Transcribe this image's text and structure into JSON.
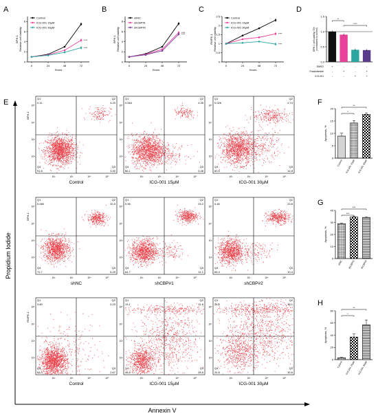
{
  "figure": {
    "y_axis_label": "Propidium Iodide",
    "x_axis_label": "Annexin V"
  },
  "chart_data": [
    {
      "panel": "A",
      "type": "line",
      "ylabel": "BPH-1 Relative cell viability",
      "xlabel": "Hours",
      "x": [
        0,
        24,
        48,
        72
      ],
      "ylim": [
        0,
        9
      ],
      "yticks": [
        0,
        2,
        4,
        6,
        8
      ],
      "series": [
        {
          "name": "Control",
          "color": "#000000",
          "values": [
            1.0,
            1.5,
            3.0,
            7.5
          ]
        },
        {
          "name": "ICG-001 15µM",
          "color": "#e8419a",
          "values": [
            1.0,
            1.4,
            2.3,
            4.3
          ]
        },
        {
          "name": "ICG-001 30µM",
          "color": "#2ba6a0",
          "values": [
            1.0,
            1.3,
            1.9,
            2.8
          ]
        }
      ],
      "annotations": [
        "****",
        "****"
      ]
    },
    {
      "panel": "B",
      "type": "line",
      "ylabel": "BPH-1 Relative cell viability",
      "xlabel": "Hours",
      "x": [
        0,
        24,
        48,
        72
      ],
      "ylim": [
        0,
        9
      ],
      "yticks": [
        0,
        2,
        4,
        6,
        8
      ],
      "series": [
        {
          "name": "shNC",
          "color": "#000000",
          "values": [
            1.0,
            1.6,
            3.0,
            7.6
          ]
        },
        {
          "name": "shCBP#1",
          "color": "#e8419a",
          "values": [
            1.0,
            1.5,
            2.5,
            5.8
          ]
        },
        {
          "name": "shCBP#2",
          "color": "#7b3fa0",
          "values": [
            1.0,
            1.4,
            2.2,
            5.5
          ]
        }
      ],
      "annotations": [
        "****",
        "****"
      ]
    },
    {
      "panel": "C",
      "type": "line",
      "ylabel": "RWPE-1 Relative cell viability",
      "xlabel": "Hours",
      "x": [
        0,
        24,
        48,
        72
      ],
      "ylim": [
        0,
        2.5
      ],
      "yticks": [
        0,
        0.5,
        1.0,
        1.5,
        2.0,
        2.5
      ],
      "series": [
        {
          "name": "Control",
          "color": "#000000",
          "values": [
            1.0,
            1.45,
            1.85,
            2.3
          ]
        },
        {
          "name": "ICG-001 15µM",
          "color": "#e8419a",
          "values": [
            1.0,
            1.25,
            1.35,
            1.55
          ]
        },
        {
          "name": "ICG-001 30µM",
          "color": "#2ba6a0",
          "values": [
            1.0,
            1.05,
            1.12,
            0.98
          ]
        }
      ],
      "annotations": [
        "****",
        "****"
      ]
    },
    {
      "panel": "D",
      "type": "bar",
      "ylabel": "BPH-1 cell viability, 72h (normalized to control)",
      "ylim": [
        0,
        1.5
      ],
      "yticks": [
        0,
        0.5,
        1.0,
        1.5
      ],
      "row_labels": [
        "DMSO",
        "Enzalutamide",
        "ICG-001"
      ],
      "conditions": [
        [
          "+",
          "-",
          "-"
        ],
        [
          "-",
          "+",
          "-"
        ],
        [
          "-",
          "-",
          "+"
        ],
        [
          "-",
          "+",
          "+"
        ]
      ],
      "values": [
        1.0,
        0.9,
        0.4,
        0.39
      ],
      "colors": [
        "#111111",
        "#e8419a",
        "#2ba6a0",
        "#5a3d8a"
      ],
      "annotations": [
        "**",
        "****"
      ]
    },
    {
      "panel": "E",
      "type": "scatter",
      "xlabel": "Annexin V",
      "ylabel": "Propidium Iodide",
      "x_ticks": [
        "10²",
        "10³",
        "10⁴",
        "10⁵"
      ],
      "y_ticks": [
        "10²",
        "10³",
        "10⁴",
        "10⁵"
      ],
      "quadrant_labels": [
        "Q1",
        "Q2",
        "Q3",
        "Q4"
      ],
      "plots": [
        {
          "row": "BPH-1",
          "caption": "Control",
          "q1": "0.11",
          "q2": "4.20",
          "q3": "3.92",
          "q4": "91.8"
        },
        {
          "row": "BPH-1",
          "caption": "ICG-001 15µM",
          "q1": "0.064",
          "q2": "4.35",
          "q3": "9.48",
          "q4": "86.1"
        },
        {
          "row": "BPH-1",
          "caption": "ICG-001 30µM",
          "q1": "0.026",
          "q2": "2.74",
          "q3": "14.8",
          "q4": "82.5"
        },
        {
          "row": "BPH-1",
          "caption": "shNC",
          "q1": "0.080",
          "q2": "20.9",
          "q3": "6.29",
          "q4": "72.7"
        },
        {
          "row": "BPH-1",
          "caption": "shCBP#1",
          "q1": "0.96",
          "q2": "23.2",
          "q3": "11.1",
          "q4": "64.7"
        },
        {
          "row": "BPH-1",
          "caption": "shCBP#2",
          "q1": "0.46",
          "q2": "23.8",
          "q3": "10.4",
          "q4": "65.3"
        },
        {
          "row": "RWPE-1",
          "caption": "Control",
          "q1": "3.80",
          "q2": "0.23",
          "q3": "2.67",
          "q4": "93.3"
        },
        {
          "row": "RWPE-1",
          "caption": "ICG-001 15µM",
          "q1": "13.1",
          "q2": "11.6",
          "q3": "28.5",
          "q4": "46.8"
        },
        {
          "row": "RWPE-1",
          "caption": "ICG-001 30µM",
          "q1": "26.5",
          "q2": "18.1",
          "q3": "30.6",
          "q4": "24.8"
        }
      ]
    },
    {
      "panel": "F",
      "type": "bar",
      "ylabel": "Apoptosis, %",
      "ylim": [
        0,
        20
      ],
      "yticks": [
        0,
        5,
        10,
        15,
        20
      ],
      "categories": [
        "Control",
        "ICG-001 15µM",
        "ICG-001 30µM"
      ],
      "values": [
        8.9,
        14.2,
        17.7
      ],
      "errors": [
        1.2,
        1.0,
        0.6
      ],
      "patterns": [
        "dots",
        "grid",
        "checker"
      ],
      "annotations": [
        "**",
        "*"
      ]
    },
    {
      "panel": "G",
      "type": "bar",
      "ylabel": "Apoptosis, %",
      "ylim": [
        0,
        40
      ],
      "yticks": [
        0,
        10,
        20,
        30,
        40
      ],
      "categories": [
        "shNC",
        "shCBP#1",
        "shCBP#2"
      ],
      "values": [
        29.0,
        34.5,
        34.2
      ],
      "errors": [
        0.4,
        0.5,
        0.3
      ],
      "patterns": [
        "grid",
        "checker",
        "hlines"
      ],
      "annotations": [
        "***",
        "***"
      ]
    },
    {
      "panel": "H",
      "type": "bar",
      "ylabel": "Apoptosis, %",
      "ylim": [
        0,
        80
      ],
      "yticks": [
        0,
        20,
        40,
        60,
        80
      ],
      "categories": [
        "Control",
        "ICG-001 15µM",
        "ICG-001 30µM"
      ],
      "values": [
        3.0,
        37.0,
        57.0
      ],
      "errors": [
        0.8,
        5.0,
        8.0
      ],
      "patterns": [
        "grid",
        "checker",
        "hlines"
      ],
      "annotations": [
        "**",
        "*"
      ]
    }
  ]
}
